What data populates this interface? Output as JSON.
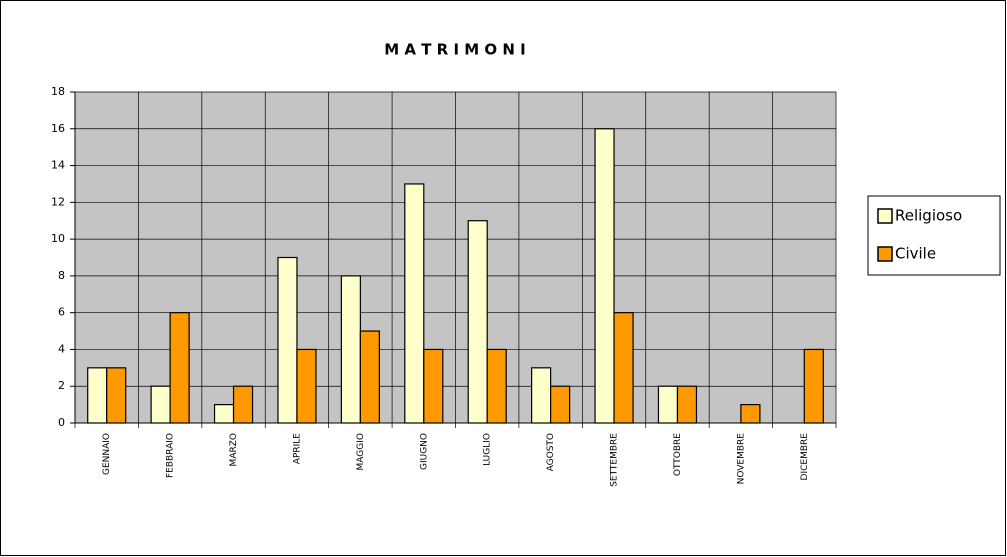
{
  "chart_data": {
    "type": "bar",
    "title": "M A T R I M O N I",
    "categories": [
      "GENNAIO",
      "FEBBRAIO",
      "MARZO",
      "APRILE",
      "MAGGIO",
      "GIUGNO",
      "LUGLIO",
      "AGOSTO",
      "SETTEMBRE",
      "OTTOBRE",
      "NOVEMBRE",
      "DICEMBRE"
    ],
    "series": [
      {
        "name": "Religioso",
        "color": "#ffffcc",
        "values": [
          3,
          2,
          1,
          9,
          8,
          13,
          11,
          3,
          16,
          2,
          0,
          0
        ]
      },
      {
        "name": "Civile",
        "color": "#ff9900",
        "values": [
          3,
          6,
          2,
          4,
          5,
          4,
          4,
          2,
          6,
          2,
          1,
          4
        ]
      }
    ],
    "ylim": [
      0,
      18
    ],
    "yticks": [
      0,
      2,
      4,
      6,
      8,
      10,
      12,
      14,
      16,
      18
    ],
    "grid": true,
    "legend": "right"
  }
}
